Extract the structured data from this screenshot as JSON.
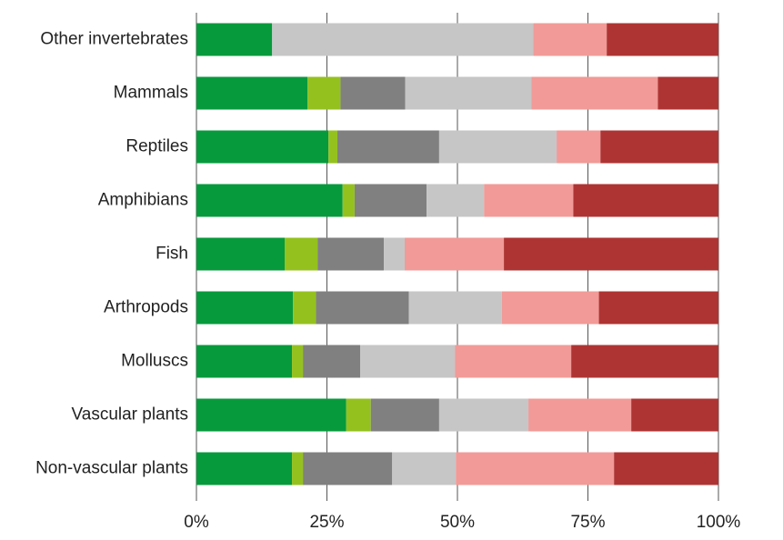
{
  "chart_data": {
    "type": "stacked-bar-horizontal",
    "categories": [
      "Other invertebrates",
      "Mammals",
      "Reptiles",
      "Amphibians",
      "Fish",
      "Arthropods",
      "Molluscs",
      "Vascular plants",
      "Non-vascular plants"
    ],
    "series": [
      {
        "color": "#079a3c",
        "values": [
          14.5,
          21.3,
          25.3,
          28.0,
          16.9,
          18.5,
          18.3,
          28.7,
          18.3
        ]
      },
      {
        "color": "#95c11f",
        "values": [
          0,
          6.3,
          1.7,
          2.3,
          6.3,
          4.4,
          2.1,
          4.7,
          2.1
        ]
      },
      {
        "color": "#808080",
        "values": [
          0,
          12.4,
          19.5,
          13.8,
          12.7,
          17.8,
          11.0,
          13.1,
          17.1
        ]
      },
      {
        "color": "#c6c6c6",
        "values": [
          50.0,
          24.2,
          22.5,
          11.0,
          4.0,
          17.8,
          18.1,
          17.1,
          12.2
        ]
      },
      {
        "color": "#f19a97",
        "values": [
          14.1,
          24.2,
          8.4,
          17.1,
          19.0,
          18.6,
          22.3,
          19.7,
          30.3
        ]
      },
      {
        "color": "#ae3433",
        "values": [
          21.4,
          11.6,
          22.6,
          27.8,
          41.1,
          22.9,
          28.2,
          16.7,
          20.0
        ]
      }
    ],
    "xlim": [
      0,
      100
    ],
    "xticks": [
      {
        "value": 0,
        "label": "0%"
      },
      {
        "value": 25,
        "label": "25%"
      },
      {
        "value": 50,
        "label": "50%"
      },
      {
        "value": 75,
        "label": "75%"
      },
      {
        "value": 100,
        "label": "100%"
      }
    ],
    "grid": true
  }
}
